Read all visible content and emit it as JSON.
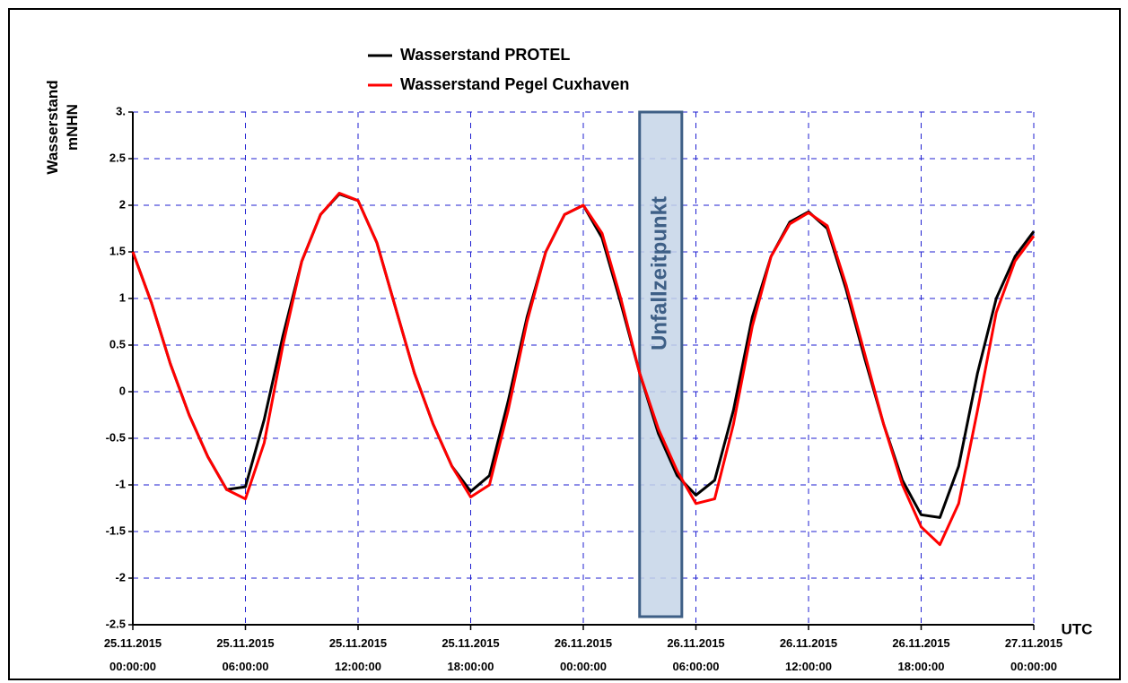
{
  "chart_data": {
    "type": "line",
    "y_label": "Wasserstand mNHN",
    "x_label": "UTC",
    "annotation": {
      "text": "Unfallzeitpunkt",
      "x_range": [
        "2015-11-26T03:00:00",
        "2015-11-26T05:15:00"
      ]
    },
    "x": [
      "2015-11-25T00:00:00",
      "2015-11-25T01:00:00",
      "2015-11-25T02:00:00",
      "2015-11-25T03:00:00",
      "2015-11-25T04:00:00",
      "2015-11-25T05:00:00",
      "2015-11-25T06:00:00",
      "2015-11-25T07:00:00",
      "2015-11-25T08:00:00",
      "2015-11-25T09:00:00",
      "2015-11-25T10:00:00",
      "2015-11-25T11:00:00",
      "2015-11-25T12:00:00",
      "2015-11-25T13:00:00",
      "2015-11-25T14:00:00",
      "2015-11-25T15:00:00",
      "2015-11-25T16:00:00",
      "2015-11-25T17:00:00",
      "2015-11-25T18:00:00",
      "2015-11-25T19:00:00",
      "2015-11-25T20:00:00",
      "2015-11-25T21:00:00",
      "2015-11-25T22:00:00",
      "2015-11-25T23:00:00",
      "2015-11-26T00:00:00",
      "2015-11-26T01:00:00",
      "2015-11-26T02:00:00",
      "2015-11-26T03:00:00",
      "2015-11-26T04:00:00",
      "2015-11-26T05:00:00",
      "2015-11-26T06:00:00",
      "2015-11-26T07:00:00",
      "2015-11-26T08:00:00",
      "2015-11-26T09:00:00",
      "2015-11-26T10:00:00",
      "2015-11-26T11:00:00",
      "2015-11-26T12:00:00",
      "2015-11-26T13:00:00",
      "2015-11-26T14:00:00",
      "2015-11-26T15:00:00",
      "2015-11-26T16:00:00",
      "2015-11-26T17:00:00",
      "2015-11-26T18:00:00",
      "2015-11-26T19:00:00",
      "2015-11-26T20:00:00",
      "2015-11-26T21:00:00",
      "2015-11-26T22:00:00",
      "2015-11-26T23:00:00",
      "2015-11-27T00:00:00"
    ],
    "series": [
      {
        "name": "Wasserstand PROTEL",
        "color": "#000000",
        "values": [
          1.5,
          0.95,
          0.3,
          -0.25,
          -0.7,
          -1.05,
          -1.02,
          -0.3,
          0.6,
          1.4,
          1.9,
          2.12,
          2.05,
          1.6,
          0.9,
          0.2,
          -0.35,
          -0.8,
          -1.07,
          -0.9,
          -0.1,
          0.8,
          1.5,
          1.9,
          2.0,
          1.65,
          0.95,
          0.2,
          -0.45,
          -0.9,
          -1.11,
          -0.95,
          -0.2,
          0.8,
          1.45,
          1.82,
          1.93,
          1.75,
          1.1,
          0.35,
          -0.35,
          -0.95,
          -1.32,
          -1.35,
          -0.8,
          0.2,
          1.0,
          1.45,
          1.72
        ]
      },
      {
        "name": "Wasserstand Pegel Cuxhaven",
        "color": "#ff0000",
        "values": [
          1.5,
          0.95,
          0.3,
          -0.25,
          -0.7,
          -1.05,
          -1.15,
          -0.55,
          0.5,
          1.4,
          1.9,
          2.13,
          2.05,
          1.6,
          0.9,
          0.2,
          -0.35,
          -0.8,
          -1.13,
          -1.0,
          -0.2,
          0.75,
          1.5,
          1.9,
          2.0,
          1.7,
          1.0,
          0.2,
          -0.4,
          -0.85,
          -1.2,
          -1.15,
          -0.35,
          0.7,
          1.45,
          1.8,
          1.92,
          1.78,
          1.15,
          0.4,
          -0.35,
          -1.0,
          -1.45,
          -1.64,
          -1.2,
          -0.2,
          0.85,
          1.4,
          1.67
        ]
      }
    ],
    "xlim": [
      "2015-11-25T00:00:00",
      "2015-11-27T00:00:00"
    ],
    "xticks": [
      {
        "value": "2015-11-25T00:00:00",
        "label": "25.11.2015 00:00:00"
      },
      {
        "value": "2015-11-25T06:00:00",
        "label": "25.11.2015 06:00:00"
      },
      {
        "value": "2015-11-25T12:00:00",
        "label": "25.11.2015 12:00:00"
      },
      {
        "value": "2015-11-25T18:00:00",
        "label": "25.11.2015 18:00:00"
      },
      {
        "value": "2015-11-26T00:00:00",
        "label": "26.11.2015 00:00:00"
      },
      {
        "value": "2015-11-26T06:00:00",
        "label": "26.11.2015 06:00:00"
      },
      {
        "value": "2015-11-26T12:00:00",
        "label": "26.11.2015 12:00:00"
      },
      {
        "value": "2015-11-26T18:00:00",
        "label": "26.11.2015 18:00:00"
      },
      {
        "value": "2015-11-27T00:00:00",
        "label": "27.11.2015 00:00:00"
      }
    ],
    "ylim": [
      -2.5,
      3
    ],
    "yticks": [
      -2.5,
      -2,
      -1.5,
      -1,
      -0.5,
      0,
      0.5,
      1,
      1.5,
      2,
      2.5,
      {
        "value": 3,
        "label": "3."
      }
    ],
    "grid": true,
    "legend": "top"
  }
}
